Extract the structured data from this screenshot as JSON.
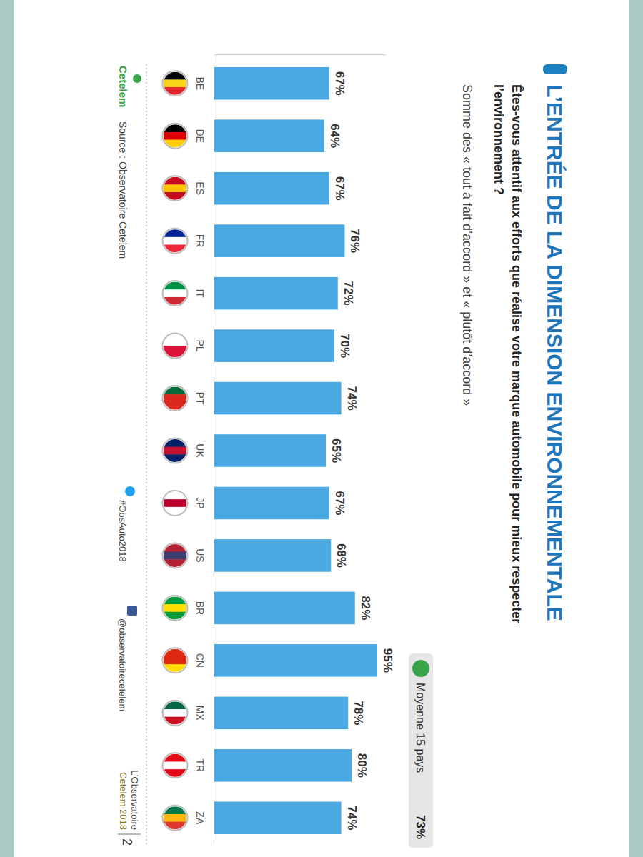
{
  "chart_data": {
    "type": "bar",
    "title": "L’ENTRÉE DE LA DIMENSION ENVIRONNEMENTALE",
    "subtitle": [
      "Êtes-vous attentif aux efforts que réalise votre marque automobile pour mieux respecter",
      "l’environnement ?"
    ],
    "note": "Somme des « tout à fait d’accord » et « plutôt d’accord »",
    "annotations": [
      "Moyenne 15 pays",
      "73%"
    ],
    "categories": [
      "BE",
      "DE",
      "ES",
      "FR",
      "IT",
      "PL",
      "PT",
      "UK",
      "JP",
      "US",
      "BR",
      "CN",
      "MX",
      "TR",
      "ZA"
    ],
    "values": [
      67,
      64,
      67,
      76,
      72,
      70,
      74,
      65,
      67,
      68,
      82,
      95,
      78,
      80,
      74
    ],
    "value_labels": [
      "67%",
      "64%",
      "67%",
      "76%",
      "72%",
      "70%",
      "74%",
      "65%",
      "67%",
      "68%",
      "82%",
      "95%",
      "78%",
      "80%",
      "74%"
    ],
    "color": "#4aa9e2",
    "ylim": [
      0,
      100
    ],
    "yticks": [],
    "data_labels": true,
    "tick_labels": "x",
    "source": "Source : Observatoire Cetelem",
    "footer": [
      "Cetelem",
      "#ObsAuto2018",
      "@observatoirecetelem",
      "L’Observatoire",
      "Cetelem 2018",
      "2"
    ]
  }
}
